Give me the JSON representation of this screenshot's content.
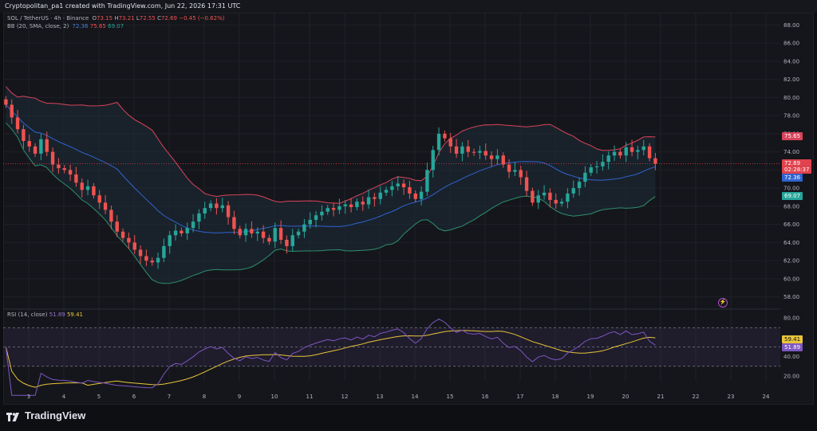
{
  "top_caption": "Cryptopolitan_pa1 created with TradingView.com, Jun 22, 2026 17:31 UTC",
  "symbol_legend": {
    "symbol": "SOL / TetherUS · 4h · Binance",
    "open_label": "O",
    "open": "73.15",
    "high_label": "H",
    "high": "73.21",
    "low_label": "L",
    "low": "72.55",
    "close_label": "C",
    "close": "72.69",
    "change": "−0.45 (−0.62%)"
  },
  "bb_legend": {
    "label": "BB (20, SMA, close, 2)",
    "basis": "72.36",
    "upper": "75.65",
    "lower": "69.07"
  },
  "rsi_legend": {
    "label": "RSI (14, close)",
    "rsi": "51.89",
    "ma": "59.41"
  },
  "price_tags": {
    "upper": "75.65",
    "last": "72.69",
    "countdown": "02:28:37",
    "basis": "72.36",
    "lower": "69.07",
    "rsi_ma": "59.41",
    "rsi": "51.89"
  },
  "colors": {
    "up": "#26a69a",
    "down": "#ef5350",
    "upper_band": "#d8435a",
    "basis": "#2f63d1",
    "lower_band": "#2e8f6e",
    "band_fill": "#1d2e39",
    "rsi": "#7e57c2",
    "rsi_ma": "#e8c53a",
    "last_price": "#e0424e"
  },
  "price_axis": [
    "88.00",
    "86.00",
    "84.00",
    "82.00",
    "80.00",
    "78.00",
    "76.00",
    "74.00",
    "72.00",
    "70.00",
    "68.00",
    "66.00",
    "64.00",
    "62.00",
    "60.00",
    "58.00"
  ],
  "rsi_axis": [
    "80.00",
    "60.00",
    "40.00",
    "20.00"
  ],
  "time_axis": [
    "3",
    "4",
    "5",
    "6",
    "7",
    "8",
    "9",
    "10",
    "11",
    "12",
    "13",
    "14",
    "15",
    "16",
    "17",
    "18",
    "19",
    "20",
    "21",
    "22",
    "23",
    "24"
  ],
  "chart_data": {
    "type": "candlestick",
    "symbol": "SOL / TetherUS",
    "interval": "4h",
    "price_range": [
      57,
      89
    ],
    "rsi_range": [
      15,
      85
    ],
    "rsi_bands": [
      70,
      50,
      30
    ],
    "day_positions": [
      3,
      4,
      5,
      6,
      7,
      8,
      9,
      10,
      11,
      12,
      13,
      14,
      15,
      16,
      17,
      18,
      19,
      20,
      21,
      22,
      23,
      24
    ],
    "candles_per_day": 6,
    "start_day": 2.35,
    "closes": [
      79.2,
      77.8,
      76.5,
      75.2,
      74.6,
      73.8,
      75.4,
      74.0,
      72.6,
      72.2,
      72.0,
      71.5,
      70.6,
      69.8,
      70.2,
      69.2,
      68.4,
      67.6,
      66.3,
      65.2,
      64.5,
      64.0,
      63.2,
      62.5,
      62.0,
      61.8,
      62.3,
      63.6,
      64.8,
      65.3,
      65.0,
      65.6,
      66.3,
      67.2,
      67.8,
      68.3,
      67.8,
      68.1,
      66.8,
      65.5,
      64.8,
      65.5,
      65.0,
      65.2,
      64.5,
      64.1,
      65.6,
      64.3,
      63.6,
      64.8,
      65.2,
      66.0,
      66.5,
      67.0,
      67.4,
      67.8,
      67.6,
      68.0,
      68.2,
      67.9,
      68.5,
      68.2,
      69.0,
      68.8,
      69.5,
      69.8,
      70.2,
      70.5,
      70.1,
      69.4,
      68.8,
      69.6,
      72.0,
      74.2,
      76.0,
      75.5,
      74.6,
      73.8,
      74.6,
      74.0,
      73.9,
      74.1,
      73.6,
      73.2,
      73.6,
      72.6,
      71.8,
      72.0,
      71.2,
      69.7,
      68.4,
      69.2,
      69.5,
      68.7,
      68.3,
      68.5,
      69.4,
      70.0,
      70.7,
      71.7,
      72.3,
      72.4,
      72.9,
      73.6,
      74.0,
      73.6,
      74.5,
      74.0,
      74.2,
      74.6,
      73.3,
      72.69
    ],
    "bb_upper_end": 75.65,
    "bb_basis_end": 72.36,
    "bb_lower_end": 69.07,
    "rsi_last": 51.89,
    "rsi_ma_last": 59.41
  }
}
